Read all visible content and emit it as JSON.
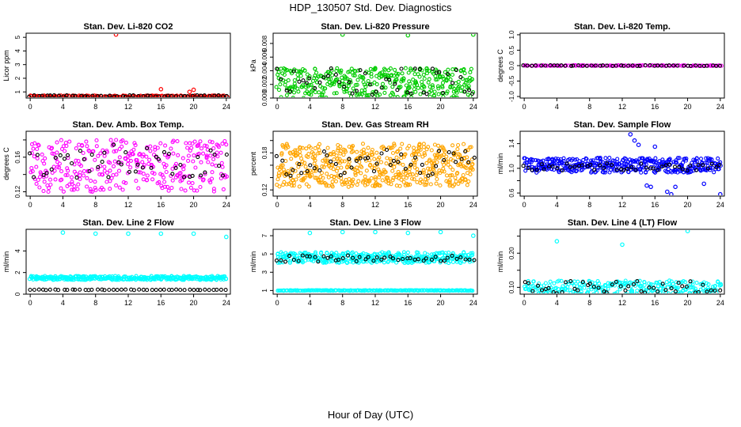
{
  "page": {
    "title": "HDP_130507  Std. Dev. Diagnostics",
    "x_caption": "Hour of Day (UTC)"
  },
  "chart_data": [
    {
      "type": "scatter",
      "id": "co2",
      "title": "Stan. Dev. Li-820 CO2",
      "ylabel": "Licor ppm",
      "xlim": [
        -0.5,
        24.5
      ],
      "xticks": [
        0,
        4,
        8,
        12,
        16,
        20,
        24
      ],
      "ylim": [
        0.55,
        5.3
      ],
      "yticks": [
        1,
        2,
        3,
        4,
        5
      ],
      "color": "#ff0000",
      "series": [
        {
          "kind": "band",
          "color": "#ff0000",
          "center": 0.68,
          "spread": 0.06,
          "n": 160
        },
        {
          "kind": "band",
          "color": "#000000",
          "center": 0.7,
          "spread": 0.05,
          "n": 48
        },
        {
          "kind": "points",
          "color": "#ff0000",
          "x": [
            10.5,
            16,
            19.5,
            20
          ],
          "y": [
            5.2,
            1.2,
            1.0,
            1.15
          ]
        }
      ]
    },
    {
      "type": "scatter",
      "id": "pressure",
      "title": "Stan. Dev. Li-820 Pressure",
      "ylabel": "kPa",
      "xlim": [
        -0.5,
        24.5
      ],
      "xticks": [
        0,
        4,
        8,
        12,
        16,
        20,
        24
      ],
      "ylim": [
        0,
        0.0095
      ],
      "yticks": [
        0.0,
        0.002,
        0.004,
        0.006,
        0.008
      ],
      "ytick_labels": [
        "0.000",
        "0.002",
        "0.004",
        "0.006",
        "0.008"
      ],
      "color": "#00cc00",
      "series": [
        {
          "kind": "band",
          "color": "#00cc00",
          "center": 0.0022,
          "spread": 0.0022,
          "n": 260
        },
        {
          "kind": "band",
          "color": "#00cc00",
          "center": 0.0028,
          "spread": 0.0015,
          "n": 120
        },
        {
          "kind": "band",
          "color": "#000000",
          "center": 0.0025,
          "spread": 0.002,
          "n": 48
        },
        {
          "kind": "points",
          "color": "#00cc00",
          "x": [
            8,
            16,
            24
          ],
          "y": [
            0.0093,
            0.0092,
            0.0093
          ]
        }
      ]
    },
    {
      "type": "scatter",
      "id": "temp",
      "title": "Stan. Dev. Li-820 Temp.",
      "ylabel": "degrees C",
      "xlim": [
        -0.5,
        24.5
      ],
      "xticks": [
        0,
        4,
        8,
        12,
        16,
        20,
        24
      ],
      "ylim": [
        -1.05,
        1.05
      ],
      "yticks": [
        -1.0,
        -0.5,
        0.0,
        0.5,
        1.0
      ],
      "ytick_labels": [
        "-1.0",
        "-0.5",
        "0.0",
        "0.5",
        "1.0"
      ],
      "color": "#ff00ff",
      "series": [
        {
          "kind": "line",
          "color": "#ff00ff",
          "center": 0.0,
          "n": 120
        },
        {
          "kind": "line",
          "color": "#000000",
          "center": 0.0,
          "n": 48
        }
      ]
    },
    {
      "type": "scatter",
      "id": "ambtemp",
      "title": "Stan. Dev. Amb. Box Temp.",
      "ylabel": "degrees C",
      "xlim": [
        -0.5,
        24.5
      ],
      "xticks": [
        0,
        4,
        8,
        12,
        16,
        20,
        24
      ],
      "ylim": [
        0.115,
        0.19
      ],
      "yticks": [
        0.12,
        0.14,
        0.16,
        0.18
      ],
      "ytick_labels": [
        "0.12",
        "",
        "0.16",
        ""
      ],
      "color": "#ff00ff",
      "series": [
        {
          "kind": "band",
          "color": "#ff00ff",
          "center": 0.15,
          "spread": 0.03,
          "n": 340
        },
        {
          "kind": "band",
          "color": "#000000",
          "center": 0.155,
          "spread": 0.02,
          "n": 48
        }
      ]
    },
    {
      "type": "scatter",
      "id": "rh",
      "title": "Stan. Dev. Gas Stream RH",
      "ylabel": "percent",
      "xlim": [
        -0.5,
        24.5
      ],
      "xticks": [
        0,
        4,
        8,
        12,
        16,
        20,
        24
      ],
      "ylim": [
        0.11,
        0.215
      ],
      "yticks": [
        0.12,
        0.14,
        0.16,
        0.18,
        0.2
      ],
      "ytick_labels": [
        "0.12",
        "",
        "",
        "0.18",
        ""
      ],
      "color": "#ffa500",
      "series": [
        {
          "kind": "band",
          "color": "#ffa500",
          "center": 0.16,
          "spread": 0.035,
          "n": 520
        },
        {
          "kind": "band",
          "color": "#000000",
          "center": 0.16,
          "spread": 0.025,
          "n": 48
        }
      ]
    },
    {
      "type": "scatter",
      "id": "sampleflow",
      "title": "Stan. Dev. Sample Flow",
      "ylabel": "ml/min",
      "xlim": [
        -0.5,
        24.5
      ],
      "xticks": [
        0,
        4,
        8,
        12,
        16,
        20,
        24
      ],
      "ylim": [
        0.55,
        1.6
      ],
      "yticks": [
        0.6,
        0.8,
        1.0,
        1.2,
        1.4
      ],
      "ytick_labels": [
        "0.6",
        "",
        "1.0",
        "",
        "1.4"
      ],
      "color": "#0000ff",
      "series": [
        {
          "kind": "band",
          "color": "#0000ff",
          "center": 1.05,
          "spread": 0.12,
          "n": 420
        },
        {
          "kind": "band",
          "color": "#000000",
          "center": 1.02,
          "spread": 0.06,
          "n": 48
        },
        {
          "kind": "points",
          "color": "#0000ff",
          "x": [
            13,
            13.5,
            14,
            15,
            15.5,
            16,
            17.5,
            18,
            18.5,
            22,
            24
          ],
          "y": [
            1.55,
            1.45,
            1.38,
            0.72,
            0.7,
            1.35,
            0.62,
            0.58,
            0.7,
            0.75,
            0.58
          ]
        }
      ]
    },
    {
      "type": "scatter",
      "id": "line2",
      "title": "Stan. Dev. Line 2 Flow",
      "ylabel": "ml/min",
      "xlim": [
        -0.5,
        24.5
      ],
      "xticks": [
        0,
        4,
        8,
        12,
        16,
        20,
        24
      ],
      "ylim": [
        0,
        6.0
      ],
      "yticks": [
        0,
        2,
        4
      ],
      "color": "#00ffff",
      "series": [
        {
          "kind": "band",
          "color": "#00ffff",
          "center": 1.5,
          "spread": 0.18,
          "n": 360
        },
        {
          "kind": "line",
          "color": "#000000",
          "center": 0.4,
          "n": 48
        },
        {
          "kind": "points",
          "color": "#00ffff",
          "x": [
            4,
            8,
            12,
            16,
            20,
            24
          ],
          "y": [
            5.7,
            5.6,
            5.6,
            5.6,
            5.6,
            5.3
          ]
        }
      ]
    },
    {
      "type": "scatter",
      "id": "line3",
      "title": "Stan. Dev. Line 3 Flow",
      "ylabel": "ml/min",
      "xlim": [
        -0.5,
        24.5
      ],
      "xticks": [
        0,
        4,
        8,
        12,
        16,
        20,
        24
      ],
      "ylim": [
        0.6,
        7.7
      ],
      "yticks": [
        1,
        3,
        5,
        7
      ],
      "color": "#00ffff",
      "series": [
        {
          "kind": "band",
          "color": "#00ffff",
          "center": 4.6,
          "spread": 0.6,
          "n": 360
        },
        {
          "kind": "line",
          "color": "#00ffff",
          "center": 1.0,
          "n": 200
        },
        {
          "kind": "band",
          "color": "#000000",
          "center": 4.5,
          "spread": 0.35,
          "n": 48
        },
        {
          "kind": "points",
          "color": "#00ffff",
          "x": [
            4,
            8,
            12,
            16,
            20,
            24
          ],
          "y": [
            7.3,
            7.4,
            7.4,
            7.3,
            7.4,
            7.0
          ]
        }
      ]
    },
    {
      "type": "scatter",
      "id": "line4",
      "title": "Stan. Dev. Line 4 (LT) Flow",
      "ylabel": "ml/min",
      "xlim": [
        -0.5,
        24.5
      ],
      "xticks": [
        0,
        4,
        8,
        12,
        16,
        20,
        24
      ],
      "ylim": [
        0.08,
        0.27
      ],
      "yticks": [
        0.1,
        0.15,
        0.2,
        0.25
      ],
      "ytick_labels": [
        "0.10",
        "",
        "0.20",
        ""
      ],
      "color": "#00ffff",
      "series": [
        {
          "kind": "band",
          "color": "#00ffff",
          "center": 0.1,
          "spread": 0.02,
          "n": 260
        },
        {
          "kind": "band",
          "color": "#000000",
          "center": 0.1,
          "spread": 0.018,
          "n": 48
        },
        {
          "kind": "points",
          "color": "#00ffff",
          "x": [
            4,
            12,
            20
          ],
          "y": [
            0.235,
            0.225,
            0.265
          ]
        }
      ]
    }
  ]
}
